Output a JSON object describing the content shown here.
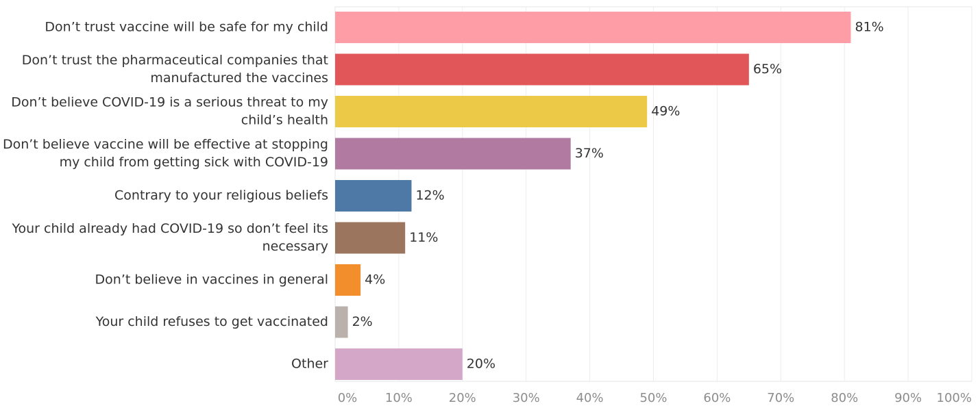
{
  "chart_data": {
    "type": "bar",
    "orientation": "horizontal",
    "categories": [
      [
        "Don’t trust vaccine will be safe for my child"
      ],
      [
        "Don’t trust the pharmaceutical companies that",
        "manufactured the vaccines"
      ],
      [
        "Don’t believe COVID-19 is a serious threat to my",
        "child’s health"
      ],
      [
        "Don’t believe vaccine will be effective at stopping",
        "my child from getting sick with COVID-19"
      ],
      [
        "Contrary to your religious beliefs"
      ],
      [
        "Your child already had COVID-19 so don’t feel its",
        "necessary"
      ],
      [
        "Don’t believe in vaccines in general"
      ],
      [
        "Your child refuses to get vaccinated"
      ],
      [
        "Other"
      ]
    ],
    "values": [
      81,
      65,
      49,
      37,
      12,
      11,
      4,
      2,
      20
    ],
    "value_labels": [
      "81%",
      "65%",
      "49%",
      "37%",
      "12%",
      "11%",
      "4%",
      "2%",
      "20%"
    ],
    "colors": [
      "#ff9da6",
      "#e15759",
      "#edc948",
      "#b07aa1",
      "#4e79a7",
      "#9c755f",
      "#f28e2b",
      "#bab0ac",
      "#d4a6c8"
    ],
    "xlim": [
      0,
      100
    ],
    "x_ticks": [
      0,
      10,
      20,
      30,
      40,
      50,
      60,
      70,
      80,
      90,
      100
    ],
    "x_tick_labels": [
      "0%",
      "10%",
      "20%",
      "30%",
      "40%",
      "50%",
      "60%",
      "70%",
      "80%",
      "90%",
      "100%"
    ],
    "grid": true
  }
}
